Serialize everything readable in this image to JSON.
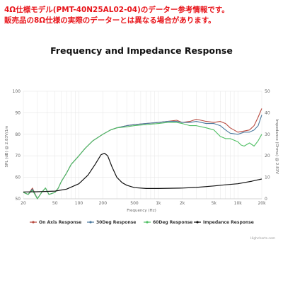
{
  "notice": {
    "line1": "4Ω仕様モデル(PMT-40N25AL02-04)のデーター参考情報です。",
    "line2": "販売品の8Ω仕様の実際のデーターとは異なる場合があります。"
  },
  "credit": "Highcharts.com",
  "colors": {
    "on_axis": "#b84a3f",
    "deg30": "#4c7a9e",
    "deg60": "#4fbf63",
    "impedance": "#111111",
    "notice": "#e8151b",
    "grid": "#e6e6e6"
  },
  "chart_data": {
    "type": "line",
    "title": "Frequency and Impedance Response",
    "xlabel": "Frequency (Hz)",
    "ylabel": "SPL (dB) @ 2.83V/1m",
    "y2label": "Impedance (Ohms) @ 2.83V",
    "x_scale": "log",
    "xlim": [
      20,
      20000
    ],
    "ylim": [
      50,
      100
    ],
    "y2lim": [
      0,
      50
    ],
    "grid": true,
    "legend": "bottom",
    "x_ticks": [
      {
        "value": 20,
        "label": "20"
      },
      {
        "value": 50,
        "label": "50"
      },
      {
        "value": 100,
        "label": "100"
      },
      {
        "value": 200,
        "label": "200"
      },
      {
        "value": 500,
        "label": "500"
      },
      {
        "value": 1000,
        "label": "1k"
      },
      {
        "value": 2000,
        "label": "2k"
      },
      {
        "value": 5000,
        "label": "5k"
      },
      {
        "value": 10000,
        "label": "10k"
      },
      {
        "value": 20000,
        "label": "20k"
      }
    ],
    "y_ticks": [
      50,
      60,
      70,
      80,
      90,
      100
    ],
    "y2_ticks": [
      0,
      10,
      20,
      30,
      40,
      50
    ],
    "series": [
      {
        "name": "On Axis Response",
        "axis": "left",
        "color": "#b84a3f",
        "x": [
          20,
          23,
          26,
          30,
          34,
          38,
          42,
          50,
          55,
          60,
          70,
          80,
          100,
          120,
          150,
          200,
          250,
          300,
          400,
          500,
          700,
          1000,
          1300,
          1700,
          2000,
          2500,
          3000,
          4000,
          5000,
          6000,
          7000,
          8000,
          10000,
          12000,
          14000,
          16000,
          18000,
          20000
        ],
        "y": [
          53,
          52,
          55,
          50,
          53,
          55,
          52,
          53,
          55,
          58,
          62,
          66,
          70,
          73.5,
          77,
          80,
          82,
          83,
          84,
          84.5,
          85,
          85.5,
          86,
          86.5,
          85.5,
          86,
          87,
          86,
          85.5,
          86,
          85,
          83,
          81,
          81.5,
          82,
          84,
          88,
          92
        ]
      },
      {
        "name": "30Deg Response",
        "axis": "left",
        "color": "#4c7a9e",
        "x": [
          20,
          23,
          26,
          30,
          34,
          38,
          42,
          50,
          55,
          60,
          70,
          80,
          100,
          120,
          150,
          200,
          250,
          300,
          400,
          500,
          700,
          1000,
          1300,
          1700,
          2000,
          2500,
          3000,
          4000,
          5000,
          6000,
          7000,
          8000,
          10000,
          12000,
          14000,
          16000,
          18000,
          20000
        ],
        "y": [
          53,
          52,
          54.5,
          50,
          53,
          55,
          52,
          53,
          55,
          58,
          62,
          66,
          70,
          73.5,
          77,
          80,
          82,
          83,
          84,
          84.5,
          85,
          85.5,
          86,
          86,
          85.5,
          85.5,
          86,
          85,
          85,
          84,
          82,
          80.5,
          80,
          81,
          81,
          82,
          84,
          89
        ]
      },
      {
        "name": "60Deg Response",
        "axis": "left",
        "color": "#4fbf63",
        "x": [
          20,
          23,
          26,
          30,
          34,
          38,
          42,
          50,
          55,
          60,
          70,
          80,
          100,
          120,
          150,
          200,
          250,
          300,
          400,
          500,
          700,
          1000,
          1300,
          1700,
          2000,
          2500,
          3000,
          4000,
          5000,
          6000,
          7000,
          8000,
          10000,
          11000,
          12000,
          14000,
          16000,
          18000,
          20000
        ],
        "y": [
          53,
          52,
          54,
          50,
          53,
          55,
          52,
          53,
          55,
          58,
          62,
          66,
          70,
          73.5,
          77,
          80,
          82,
          83,
          83.5,
          84,
          84.5,
          85,
          85.5,
          85.5,
          85,
          84,
          84,
          83,
          82,
          79,
          78,
          78,
          76.5,
          75,
          74.5,
          76,
          74.5,
          77,
          80
        ]
      },
      {
        "name": "Impedance Response",
        "axis": "right",
        "color": "#111111",
        "x": [
          20,
          30,
          50,
          70,
          100,
          130,
          160,
          190,
          210,
          230,
          260,
          300,
          350,
          400,
          500,
          700,
          1000,
          2000,
          3000,
          5000,
          7000,
          10000,
          15000,
          20000
        ],
        "y": [
          3.2,
          3.3,
          3.6,
          4.5,
          7,
          11,
          16,
          20.5,
          21.2,
          20,
          15,
          10,
          7.5,
          6.3,
          5.2,
          4.8,
          4.8,
          5,
          5.3,
          6,
          6.5,
          7,
          8.2,
          9.2
        ]
      }
    ]
  }
}
